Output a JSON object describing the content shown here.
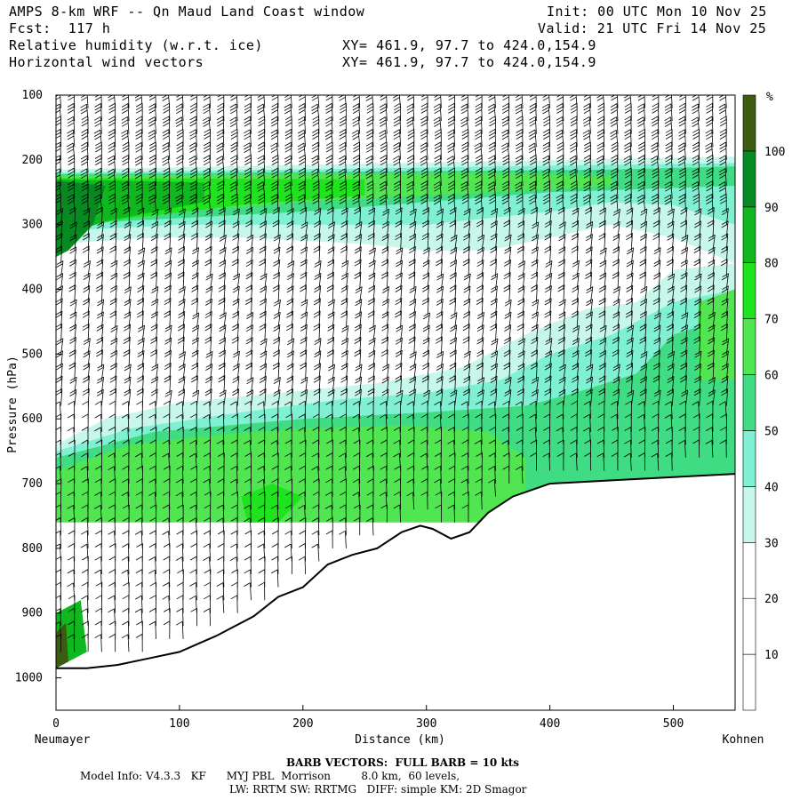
{
  "header": {
    "title": "AMPS 8-km WRF -- Qn Maud Land Coast window",
    "fcst": "Fcst:  117 h",
    "field1": "Relative humidity (w.r.t. ice)",
    "field2": "Horizontal wind vectors",
    "init": "Init: 00 UTC Mon 10 Nov 25",
    "valid": "Valid: 21 UTC Fri 14 Nov 25",
    "xy1": "XY= 461.9, 97.7 to 424.0,154.9",
    "xy2": "XY= 461.9, 97.7 to 424.0,154.9"
  },
  "footer": {
    "barb_note": "BARB VECTORS:  FULL BARB = 10 kts",
    "model_info_1": "Model Info: V4.3.3   KF      MYJ PBL  Morrison         8.0 km,  60 levels,",
    "model_info_2": "LW: RRTM SW: RRTMG   DIFF: simple KM: 2D Smagor"
  },
  "colors": {
    "rh_30_40": "#c6f7ea",
    "rh_40_50": "#7ff0d2",
    "rh_50_60": "#3fdc84",
    "rh_60_70": "#52e552",
    "rh_70_80": "#1ee41e",
    "rh_80_90": "#0fb81f",
    "rh_90_100": "#088a22",
    "rh_100_plus": "#3d5c12",
    "terrain": "#ffffff",
    "barb": "#000000"
  },
  "chart_data": {
    "type": "heatmap",
    "title": "Relative humidity (w.r.t. ice)",
    "xlabel": "Distance (km)",
    "ylabel": "Pressure (hPa)",
    "x_start_label": "Neumayer",
    "x_end_label": "Kohnen",
    "xlim": [
      0,
      550
    ],
    "ylim": [
      1050,
      100
    ],
    "xticks": [
      0,
      100,
      200,
      300,
      400,
      500
    ],
    "yticks": [
      100,
      200,
      300,
      400,
      500,
      600,
      700,
      800,
      900,
      1000
    ],
    "colorbar_unit": "%",
    "colorbar_levels": [
      10,
      20,
      30,
      40,
      50,
      60,
      70,
      80,
      90,
      100
    ],
    "terrain_surface_pressure": [
      [
        0,
        985
      ],
      [
        25,
        985
      ],
      [
        50,
        980
      ],
      [
        75,
        970
      ],
      [
        100,
        960
      ],
      [
        130,
        935
      ],
      [
        160,
        905
      ],
      [
        180,
        875
      ],
      [
        200,
        860
      ],
      [
        220,
        825
      ],
      [
        240,
        810
      ],
      [
        260,
        800
      ],
      [
        280,
        775
      ],
      [
        295,
        765
      ],
      [
        305,
        770
      ],
      [
        320,
        785
      ],
      [
        335,
        775
      ],
      [
        350,
        745
      ],
      [
        370,
        720
      ],
      [
        400,
        700
      ],
      [
        450,
        695
      ],
      [
        500,
        690
      ],
      [
        550,
        685
      ]
    ],
    "rh_regions": [
      {
        "level": "30-40",
        "desc": "upper moist band near 200 hPa"
      },
      {
        "level": "60-90",
        "desc": "upper band 230-290 hPa west"
      },
      {
        "level": "90-100",
        "desc": "moist core 220-330 hPa near Neumayer"
      },
      {
        "level": "60-80",
        "desc": "lower troposphere 500-950 hPa"
      },
      {
        "level": "0-30",
        "desc": "dry layer 300-550 hPa"
      }
    ],
    "wind_barbs": "horizontal wind vectors, full barb = 10 kts"
  }
}
